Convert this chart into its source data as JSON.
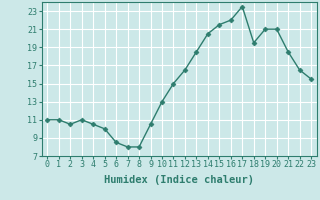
{
  "x": [
    0,
    1,
    2,
    3,
    4,
    5,
    6,
    7,
    8,
    9,
    10,
    11,
    12,
    13,
    14,
    15,
    16,
    17,
    18,
    19,
    20,
    21,
    22,
    23
  ],
  "y": [
    11,
    11,
    10.5,
    11,
    10.5,
    10,
    8.5,
    8,
    8,
    10.5,
    13,
    15,
    16.5,
    18.5,
    20.5,
    21.5,
    22,
    23.5,
    19.5,
    21,
    21,
    18.5,
    16.5,
    15.5
  ],
  "line_color": "#2e7d6e",
  "marker": "D",
  "markersize": 2.5,
  "linewidth": 1.0,
  "xlabel": "Humidex (Indice chaleur)",
  "xlim": [
    -0.5,
    23.5
  ],
  "ylim": [
    7,
    24
  ],
  "yticks": [
    7,
    9,
    11,
    13,
    15,
    17,
    19,
    21,
    23
  ],
  "xticks": [
    0,
    1,
    2,
    3,
    4,
    5,
    6,
    7,
    8,
    9,
    10,
    11,
    12,
    13,
    14,
    15,
    16,
    17,
    18,
    19,
    20,
    21,
    22,
    23
  ],
  "bg_color": "#cce8e8",
  "grid_color": "#ffffff",
  "tick_color": "#2e7d6e",
  "label_color": "#2e7d6e",
  "tick_fontsize": 6,
  "xlabel_fontsize": 7.5
}
